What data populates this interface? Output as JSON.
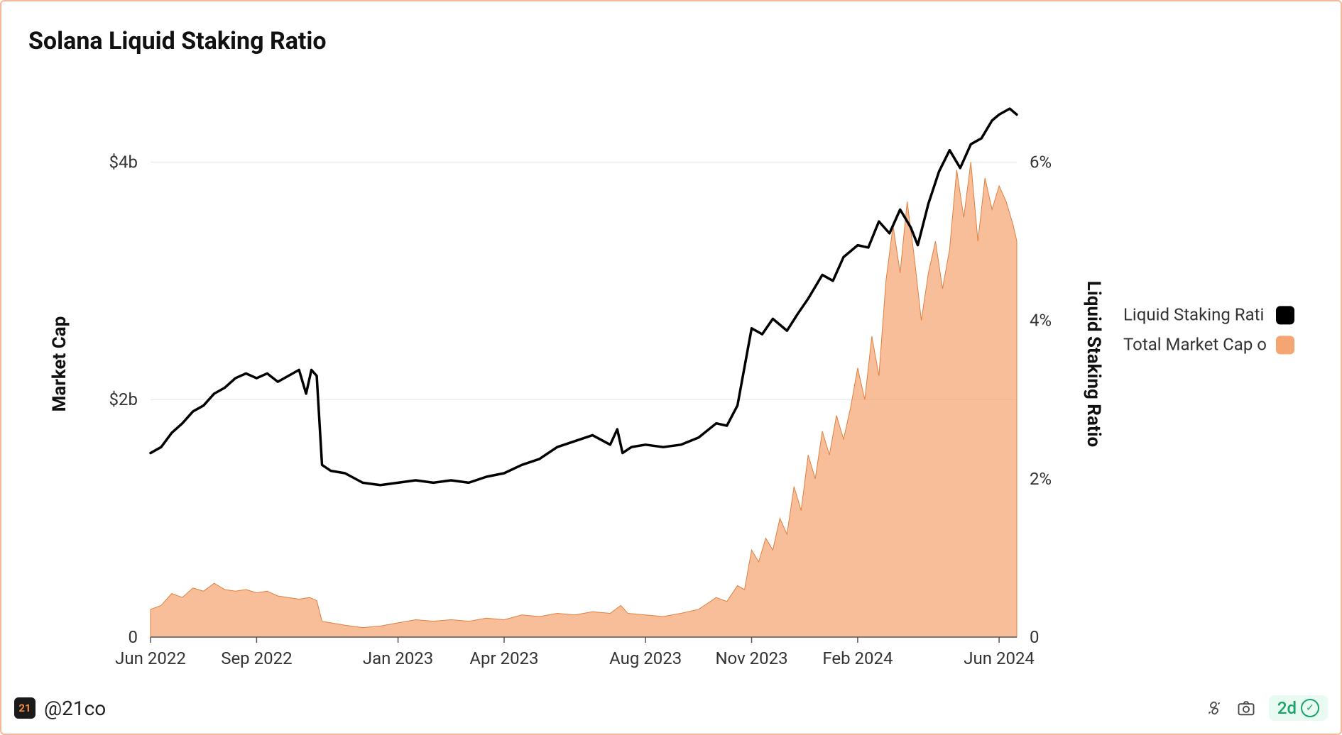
{
  "chart": {
    "type": "combo-line-area",
    "title": "Solana Liquid Staking Ratio",
    "background_color": "#ffffff",
    "border_color": "#f3b89a",
    "text_color": "#1a1a1a",
    "grid_color": "#e5e5e5",
    "axis_color": "#555555",
    "title_fontsize": 34,
    "label_fontsize": 26,
    "tick_fontsize": 24,
    "y_left": {
      "label": "Market Cap",
      "min": 0,
      "max": 4.6,
      "ticks": [
        0,
        2,
        4
      ],
      "tick_labels": [
        "0",
        "$2b",
        "$4b"
      ]
    },
    "y_right": {
      "label": "Liquid Staking Ratio",
      "min": 0,
      "max": 6.9,
      "ticks": [
        0,
        2,
        4,
        6
      ],
      "tick_labels": [
        "0",
        "2%",
        "4%",
        "6%"
      ]
    },
    "x": {
      "min": 0,
      "max": 24.5,
      "ticks": [
        0,
        3,
        7,
        10,
        14,
        17,
        20,
        24
      ],
      "tick_labels": [
        "Jun 2022",
        "Sep 2022",
        "Jan 2023",
        "Apr 2023",
        "Aug 2023",
        "Nov 2023",
        "Feb 2024",
        "Jun 2024"
      ]
    },
    "legend": {
      "items": [
        {
          "label": "Liquid Staking Rati",
          "color": "#000000",
          "type": "line"
        },
        {
          "label": "Total Market Cap o",
          "color": "#f4a572",
          "type": "area"
        }
      ]
    },
    "series_line": {
      "name": "Liquid Staking Ratio",
      "color": "#000000",
      "axis": "left",
      "line_width": 3.5,
      "points": [
        [
          0.0,
          1.55
        ],
        [
          0.3,
          1.6
        ],
        [
          0.6,
          1.72
        ],
        [
          0.9,
          1.8
        ],
        [
          1.2,
          1.9
        ],
        [
          1.5,
          1.95
        ],
        [
          1.8,
          2.05
        ],
        [
          2.1,
          2.1
        ],
        [
          2.4,
          2.18
        ],
        [
          2.7,
          2.22
        ],
        [
          3.0,
          2.18
        ],
        [
          3.3,
          2.22
        ],
        [
          3.6,
          2.15
        ],
        [
          3.9,
          2.2
        ],
        [
          4.2,
          2.25
        ],
        [
          4.4,
          2.05
        ],
        [
          4.55,
          2.25
        ],
        [
          4.7,
          2.2
        ],
        [
          4.85,
          1.45
        ],
        [
          5.1,
          1.4
        ],
        [
          5.5,
          1.38
        ],
        [
          6.0,
          1.3
        ],
        [
          6.5,
          1.28
        ],
        [
          7.0,
          1.3
        ],
        [
          7.5,
          1.32
        ],
        [
          8.0,
          1.3
        ],
        [
          8.5,
          1.32
        ],
        [
          9.0,
          1.3
        ],
        [
          9.5,
          1.35
        ],
        [
          10.0,
          1.38
        ],
        [
          10.5,
          1.45
        ],
        [
          11.0,
          1.5
        ],
        [
          11.5,
          1.6
        ],
        [
          12.0,
          1.65
        ],
        [
          12.5,
          1.7
        ],
        [
          13.0,
          1.62
        ],
        [
          13.2,
          1.75
        ],
        [
          13.35,
          1.55
        ],
        [
          13.6,
          1.6
        ],
        [
          14.0,
          1.62
        ],
        [
          14.5,
          1.6
        ],
        [
          15.0,
          1.62
        ],
        [
          15.5,
          1.68
        ],
        [
          16.0,
          1.8
        ],
        [
          16.3,
          1.78
        ],
        [
          16.6,
          1.95
        ],
        [
          17.0,
          2.6
        ],
        [
          17.3,
          2.55
        ],
        [
          17.6,
          2.68
        ],
        [
          18.0,
          2.58
        ],
        [
          18.3,
          2.72
        ],
        [
          18.6,
          2.85
        ],
        [
          19.0,
          3.05
        ],
        [
          19.3,
          3.0
        ],
        [
          19.6,
          3.2
        ],
        [
          20.0,
          3.3
        ],
        [
          20.3,
          3.28
        ],
        [
          20.6,
          3.5
        ],
        [
          20.9,
          3.4
        ],
        [
          21.2,
          3.6
        ],
        [
          21.5,
          3.45
        ],
        [
          21.7,
          3.3
        ],
        [
          22.0,
          3.65
        ],
        [
          22.3,
          3.92
        ],
        [
          22.6,
          4.1
        ],
        [
          22.9,
          3.95
        ],
        [
          23.2,
          4.15
        ],
        [
          23.5,
          4.2
        ],
        [
          23.8,
          4.35
        ],
        [
          24.0,
          4.4
        ],
        [
          24.3,
          4.45
        ],
        [
          24.5,
          4.4
        ]
      ]
    },
    "series_area": {
      "name": "Total Market Cap",
      "fill_color": "#f4a572",
      "stroke_color": "#e07f3e",
      "fill_opacity": 0.72,
      "axis": "right",
      "points": [
        [
          0.0,
          0.35
        ],
        [
          0.3,
          0.4
        ],
        [
          0.6,
          0.55
        ],
        [
          0.9,
          0.5
        ],
        [
          1.2,
          0.62
        ],
        [
          1.5,
          0.58
        ],
        [
          1.8,
          0.68
        ],
        [
          2.1,
          0.6
        ],
        [
          2.4,
          0.58
        ],
        [
          2.7,
          0.6
        ],
        [
          3.0,
          0.56
        ],
        [
          3.3,
          0.58
        ],
        [
          3.6,
          0.52
        ],
        [
          3.9,
          0.5
        ],
        [
          4.2,
          0.48
        ],
        [
          4.5,
          0.5
        ],
        [
          4.7,
          0.46
        ],
        [
          4.85,
          0.2
        ],
        [
          5.1,
          0.18
        ],
        [
          5.5,
          0.15
        ],
        [
          6.0,
          0.12
        ],
        [
          6.5,
          0.14
        ],
        [
          7.0,
          0.18
        ],
        [
          7.5,
          0.22
        ],
        [
          8.0,
          0.2
        ],
        [
          8.5,
          0.22
        ],
        [
          9.0,
          0.2
        ],
        [
          9.5,
          0.24
        ],
        [
          10.0,
          0.22
        ],
        [
          10.5,
          0.28
        ],
        [
          11.0,
          0.26
        ],
        [
          11.5,
          0.3
        ],
        [
          12.0,
          0.28
        ],
        [
          12.5,
          0.32
        ],
        [
          13.0,
          0.3
        ],
        [
          13.3,
          0.4
        ],
        [
          13.5,
          0.3
        ],
        [
          14.0,
          0.28
        ],
        [
          14.5,
          0.26
        ],
        [
          15.0,
          0.3
        ],
        [
          15.5,
          0.35
        ],
        [
          16.0,
          0.5
        ],
        [
          16.3,
          0.45
        ],
        [
          16.6,
          0.65
        ],
        [
          16.8,
          0.6
        ],
        [
          17.0,
          1.1
        ],
        [
          17.2,
          0.95
        ],
        [
          17.4,
          1.25
        ],
        [
          17.6,
          1.1
        ],
        [
          17.8,
          1.5
        ],
        [
          18.0,
          1.3
        ],
        [
          18.2,
          1.9
        ],
        [
          18.4,
          1.6
        ],
        [
          18.6,
          2.3
        ],
        [
          18.8,
          2.0
        ],
        [
          19.0,
          2.6
        ],
        [
          19.2,
          2.3
        ],
        [
          19.4,
          2.8
        ],
        [
          19.6,
          2.5
        ],
        [
          19.8,
          2.9
        ],
        [
          20.0,
          3.4
        ],
        [
          20.2,
          3.0
        ],
        [
          20.4,
          3.8
        ],
        [
          20.6,
          3.3
        ],
        [
          20.8,
          4.5
        ],
        [
          21.0,
          5.2
        ],
        [
          21.2,
          4.6
        ],
        [
          21.4,
          5.5
        ],
        [
          21.6,
          4.8
        ],
        [
          21.8,
          4.0
        ],
        [
          22.0,
          4.6
        ],
        [
          22.2,
          5.0
        ],
        [
          22.4,
          4.4
        ],
        [
          22.6,
          4.9
        ],
        [
          22.8,
          5.9
        ],
        [
          23.0,
          5.3
        ],
        [
          23.2,
          6.0
        ],
        [
          23.4,
          5.0
        ],
        [
          23.6,
          5.8
        ],
        [
          23.8,
          5.4
        ],
        [
          24.0,
          5.7
        ],
        [
          24.2,
          5.5
        ],
        [
          24.4,
          5.2
        ],
        [
          24.5,
          5.0
        ]
      ]
    }
  },
  "footer": {
    "brand_badge_text": "21",
    "handle": "@21co",
    "status_label": "2d"
  }
}
